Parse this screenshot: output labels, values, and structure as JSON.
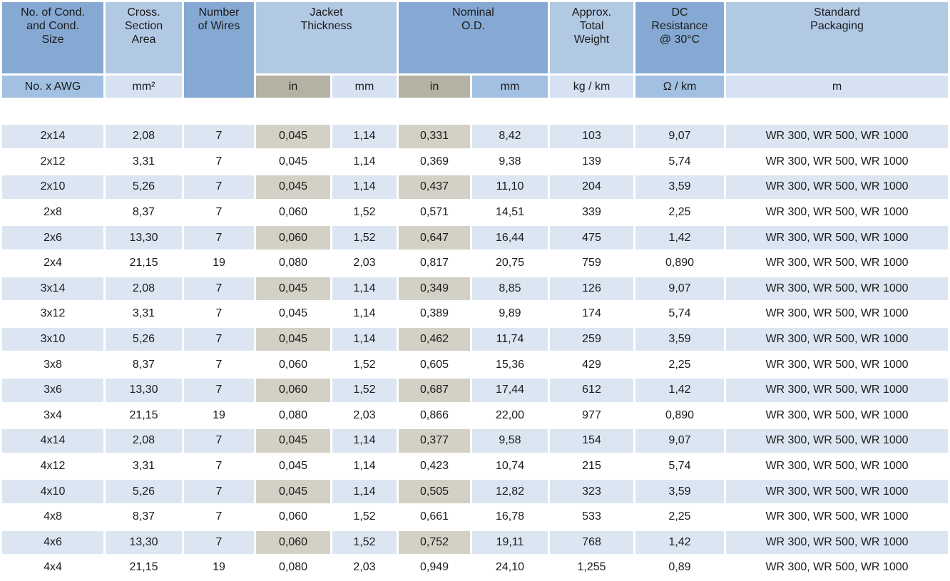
{
  "colors": {
    "header_dark": "#85a9d3",
    "header_light": "#b2c9e4",
    "unit_medium": "#a2c0e1",
    "unit_light": "#d6e2f2",
    "unit_tan": "#b6b2a3",
    "stripe": "#dce6f2",
    "stripe_tan": "#d3d1c5",
    "text": "#1b1b1b"
  },
  "table": {
    "groups": [
      {
        "label": "No. of Cond.\nand Cond.\nSize"
      },
      {
        "label": "Cross.\nSection\nArea"
      },
      {
        "label": "Number\nof Wires"
      },
      {
        "label": "Jacket\nThickness"
      },
      {
        "label": "Nominal\nO.D."
      },
      {
        "label": "Approx.\nTotal\nWeight"
      },
      {
        "label": "DC\nResistance\n@ 30°C"
      },
      {
        "label": "Standard\nPackaging"
      }
    ],
    "units": [
      "No. x AWG",
      "mm²",
      "in",
      "mm",
      "in",
      "mm",
      "kg / km",
      "Ω / km",
      "m"
    ],
    "column_ids": [
      "cond-size",
      "cross-section-area",
      "number-of-wires",
      "jacket-thickness-in",
      "jacket-thickness-mm",
      "nominal-od-in",
      "nominal-od-mm",
      "approx-total-weight",
      "dc-resistance",
      "standard-packaging"
    ],
    "rows": [
      [
        "2x14",
        "2,08",
        "7",
        "0,045",
        "1,14",
        "0,331",
        "8,42",
        "103",
        "9,07",
        "WR 300, WR 500, WR 1000"
      ],
      [
        "2x12",
        "3,31",
        "7",
        "0,045",
        "1,14",
        "0,369",
        "9,38",
        "139",
        "5,74",
        "WR 300, WR 500, WR 1000"
      ],
      [
        "2x10",
        "5,26",
        "7",
        "0,045",
        "1,14",
        "0,437",
        "11,10",
        "204",
        "3,59",
        "WR 300, WR 500, WR 1000"
      ],
      [
        "2x8",
        "8,37",
        "7",
        "0,060",
        "1,52",
        "0,571",
        "14,51",
        "339",
        "2,25",
        "WR 300, WR 500, WR 1000"
      ],
      [
        "2x6",
        "13,30",
        "7",
        "0,060",
        "1,52",
        "0,647",
        "16,44",
        "475",
        "1,42",
        "WR 300, WR 500, WR 1000"
      ],
      [
        "2x4",
        "21,15",
        "19",
        "0,080",
        "2,03",
        "0,817",
        "20,75",
        "759",
        "0,890",
        "WR 300, WR 500, WR 1000"
      ],
      [
        "3x14",
        "2,08",
        "7",
        "0,045",
        "1,14",
        "0,349",
        "8,85",
        "126",
        "9,07",
        "WR 300, WR 500, WR 1000"
      ],
      [
        "3x12",
        "3,31",
        "7",
        "0,045",
        "1,14",
        "0,389",
        "9,89",
        "174",
        "5,74",
        "WR 300, WR 500, WR 1000"
      ],
      [
        "3x10",
        "5,26",
        "7",
        "0,045",
        "1,14",
        "0,462",
        "11,74",
        "259",
        "3,59",
        "WR 300, WR 500, WR 1000"
      ],
      [
        "3x8",
        "8,37",
        "7",
        "0,060",
        "1,52",
        "0,605",
        "15,36",
        "429",
        "2,25",
        "WR 300, WR 500, WR 1000"
      ],
      [
        "3x6",
        "13,30",
        "7",
        "0,060",
        "1,52",
        "0,687",
        "17,44",
        "612",
        "1,42",
        "WR 300, WR 500, WR 1000"
      ],
      [
        "3x4",
        "21,15",
        "19",
        "0,080",
        "2,03",
        "0,866",
        "22,00",
        "977",
        "0,890",
        "WR 300, WR 500, WR 1000"
      ],
      [
        "4x14",
        "2,08",
        "7",
        "0,045",
        "1,14",
        "0,377",
        "9,58",
        "154",
        "9,07",
        "WR 300, WR 500, WR 1000"
      ],
      [
        "4x12",
        "3,31",
        "7",
        "0,045",
        "1,14",
        "0,423",
        "10,74",
        "215",
        "5,74",
        "WR 300, WR 500, WR 1000"
      ],
      [
        "4x10",
        "5,26",
        "7",
        "0,045",
        "1,14",
        "0,505",
        "12,82",
        "323",
        "3,59",
        "WR 300, WR 500, WR 1000"
      ],
      [
        "4x8",
        "8,37",
        "7",
        "0,060",
        "1,52",
        "0,661",
        "16,78",
        "533",
        "2,25",
        "WR 300, WR 500, WR 1000"
      ],
      [
        "4x6",
        "13,30",
        "7",
        "0,060",
        "1,52",
        "0,752",
        "19,11",
        "768",
        "1,42",
        "WR 300, WR 500, WR 1000"
      ],
      [
        "4x4",
        "21,15",
        "19",
        "0,080",
        "2,03",
        "0,949",
        "24,10",
        "1,255",
        "0,89",
        "WR 300, WR 500, WR 1000"
      ]
    ]
  }
}
